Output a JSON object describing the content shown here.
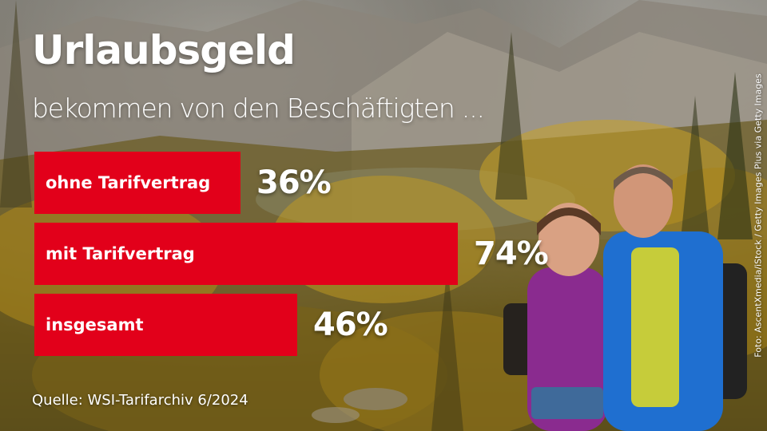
{
  "headline": "Urlaubsgeld",
  "subheadline": "bekommen von den Beschäftigten ...",
  "source": "Quelle: WSI-Tarifarchiv 6/2024",
  "photo_credit": "Foto: AscentXmedia/iStock / Getty Images Plus via Getty Images",
  "colors": {
    "bar": "#e2001a",
    "text": "#ffffff"
  },
  "chart_data": {
    "type": "bar",
    "orientation": "horizontal",
    "title": "Urlaubsgeld",
    "subtitle": "bekommen von den Beschäftigten ...",
    "categories": [
      "ohne Tarifvertrag",
      "mit Tarifvertrag",
      "insgesamt"
    ],
    "values": [
      36,
      74,
      46
    ],
    "value_labels": [
      "36%",
      "74%",
      "46%"
    ],
    "unit": "%",
    "xlim": [
      0,
      100
    ],
    "grid": false,
    "legend": "none"
  }
}
